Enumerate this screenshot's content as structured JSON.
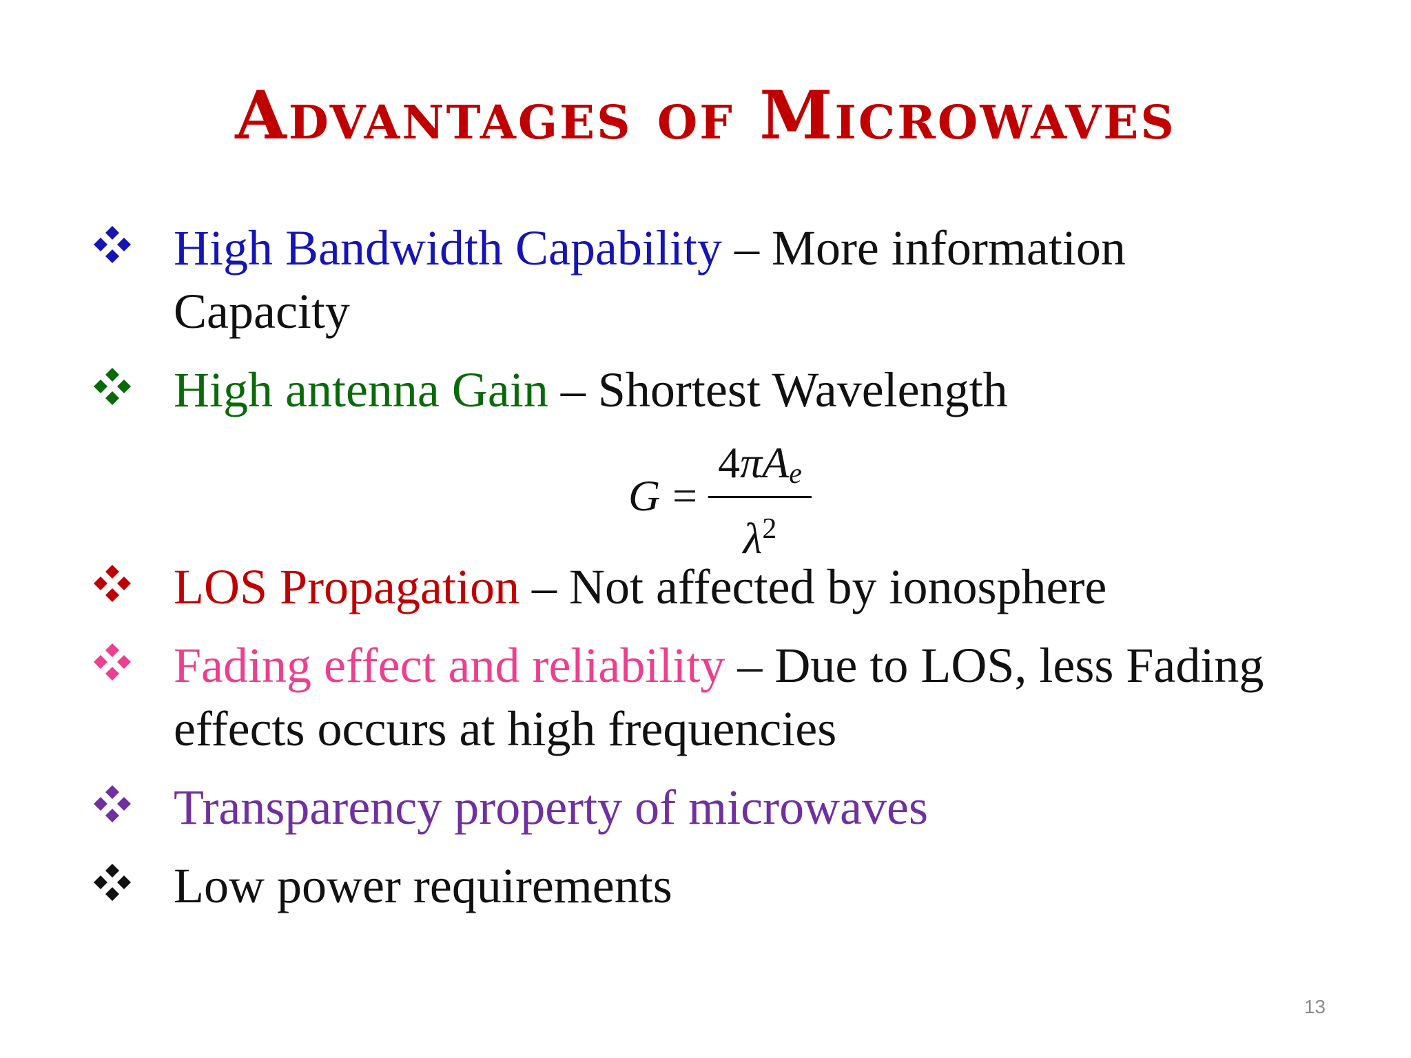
{
  "slide": {
    "title": "Advantages of Microwaves",
    "page_number": "13",
    "colors": {
      "title": "#c00000",
      "body_text": "#111111",
      "blue": "#1515b5",
      "green": "#0a6a0a",
      "red": "#c00000",
      "pink": "#ec3f8f",
      "purple": "#7030a0",
      "black": "#111111"
    },
    "bullets": [
      {
        "marker_icon": "four-diamond-bullet-icon",
        "marker_color": "#1515b5",
        "heading": "High Bandwidth Capability",
        "separator": " – ",
        "description_line1": "More information",
        "description_line2": "Capacity"
      },
      {
        "marker_icon": "four-diamond-bullet-icon",
        "marker_color": "#0a6a0a",
        "heading": "High antenna Gain",
        "separator": " – ",
        "description": "Shortest Wavelength"
      },
      {
        "marker_icon": "four-diamond-bullet-icon",
        "marker_color": "#c00000",
        "heading": "LOS Propagation",
        "separator": " – ",
        "description": "Not affected by ionosphere"
      },
      {
        "marker_icon": "four-diamond-bullet-icon",
        "marker_color": "#ec3f8f",
        "heading": "Fading effect and reliability",
        "separator": " – ",
        "description_line1": "Due to LOS, less Fading",
        "description_line2": "effects occurs at high frequencies"
      },
      {
        "marker_icon": "four-diamond-bullet-icon",
        "marker_color": "#7030a0",
        "heading": "Transparency property of microwaves"
      },
      {
        "marker_icon": "four-diamond-bullet-icon",
        "marker_color": "#111111",
        "heading": "Low power requirements"
      }
    ],
    "formula": {
      "lhs": "G",
      "equals": "=",
      "numerator_coefficient": "4",
      "numerator_symbol": "πA",
      "numerator_subscript": "e",
      "denominator_symbol": "λ",
      "denominator_exponent": "2"
    }
  }
}
